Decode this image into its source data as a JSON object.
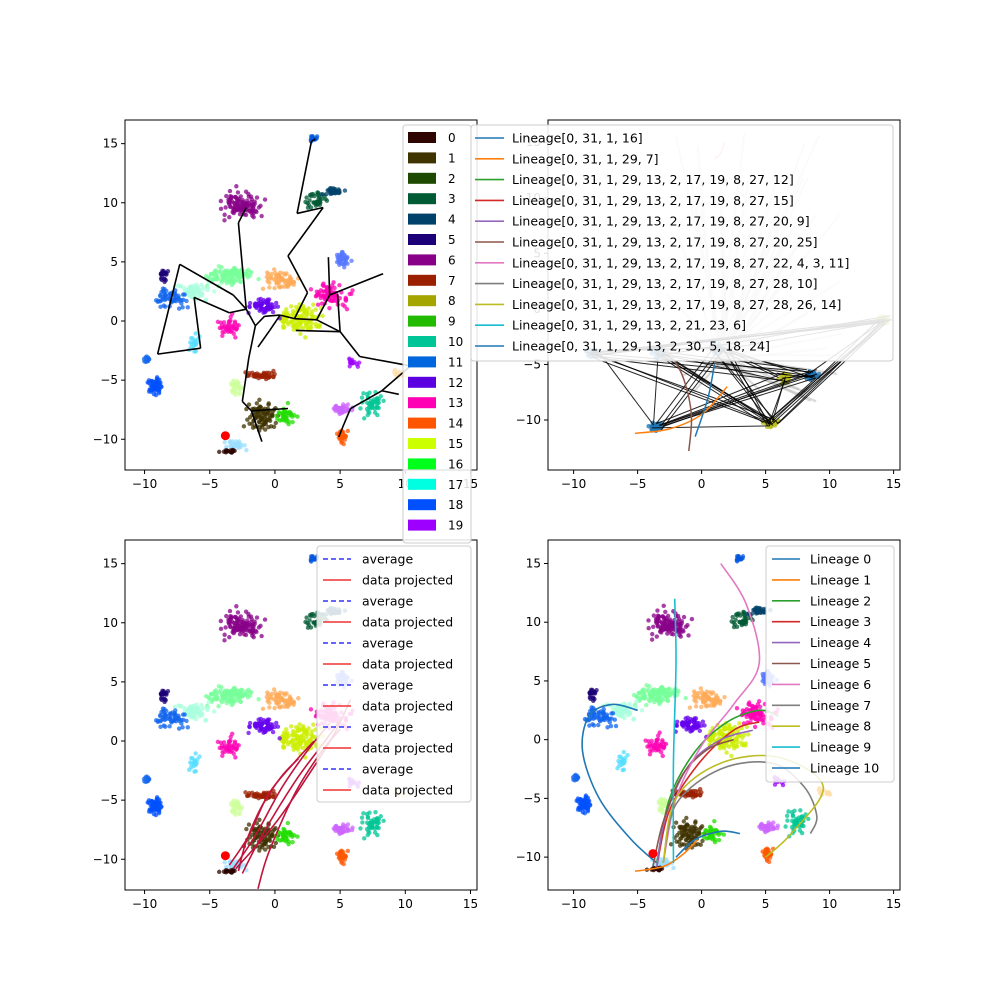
{
  "chart_data": [
    {
      "type": "scatter",
      "panel": "top-left",
      "title": "",
      "xlabel": "",
      "ylabel": "",
      "xlim": [
        -11.5,
        15.5
      ],
      "ylim": [
        -12.6,
        17.0
      ],
      "xticks": [
        -10,
        -5,
        0,
        5,
        10,
        15
      ],
      "yticks": [
        -10,
        -5,
        0,
        5,
        10,
        15
      ],
      "legend": {
        "placement": "right, overflowing the axes",
        "entries": [
          {
            "label": "0",
            "color": "#2e0500"
          },
          {
            "label": "1",
            "color": "#3f3300"
          },
          {
            "label": "2",
            "color": "#1d4a00"
          },
          {
            "label": "3",
            "color": "#005a33"
          },
          {
            "label": "4",
            "color": "#00416a"
          },
          {
            "label": "5",
            "color": "#1c0077"
          },
          {
            "label": "6",
            "color": "#880088"
          },
          {
            "label": "7",
            "color": "#9b2000"
          },
          {
            "label": "8",
            "color": "#a5a500"
          },
          {
            "label": "9",
            "color": "#22bb00"
          },
          {
            "label": "10",
            "color": "#00c596"
          },
          {
            "label": "11",
            "color": "#0066dd"
          },
          {
            "label": "12",
            "color": "#5a00e0"
          },
          {
            "label": "13",
            "color": "#ff00b4"
          },
          {
            "label": "14",
            "color": "#ff5500"
          },
          {
            "label": "15",
            "color": "#ccff00"
          },
          {
            "label": "16",
            "color": "#00ff1a"
          },
          {
            "label": "17",
            "color": "#00ffe0"
          },
          {
            "label": "18",
            "color": "#0050ff"
          },
          {
            "label": "19",
            "color": "#9d00ff"
          }
        ]
      },
      "start_marker": {
        "x": -3.8,
        "y": -9.7,
        "color": "#ff0000"
      },
      "tree_edges": [
        [
          [
            -9.0,
            -2.8
          ],
          [
            -7.3,
            4.8
          ]
        ],
        [
          [
            -7.3,
            4.8
          ],
          [
            -3.2,
            2.2
          ]
        ],
        [
          [
            -3.2,
            2.2
          ],
          [
            -2.2,
            1.0
          ]
        ],
        [
          [
            -9.0,
            -2.8
          ],
          [
            -5.7,
            -2.3
          ]
        ],
        [
          [
            -5.7,
            -2.3
          ],
          [
            -6.2,
            2.0
          ]
        ],
        [
          [
            -6.2,
            2.0
          ],
          [
            -3.5,
            0.7
          ]
        ],
        [
          [
            -3.5,
            0.7
          ],
          [
            -2.2,
            1.0
          ]
        ],
        [
          [
            -2.2,
            1.0
          ],
          [
            -2.8,
            8.3
          ]
        ],
        [
          [
            -2.8,
            8.3
          ],
          [
            -2.2,
            9.6
          ]
        ],
        [
          [
            -2.2,
            1.0
          ],
          [
            -1.5,
            -0.4
          ]
        ],
        [
          [
            -1.5,
            -0.4
          ],
          [
            -2.0,
            -3.1
          ]
        ],
        [
          [
            -2.0,
            -3.1
          ],
          [
            -2.5,
            -6.8
          ]
        ],
        [
          [
            -2.5,
            -6.8
          ],
          [
            -1.8,
            -7.6
          ]
        ],
        [
          [
            -1.8,
            -7.6
          ],
          [
            -1.0,
            -10.2
          ]
        ],
        [
          [
            -1.8,
            -7.6
          ],
          [
            1.0,
            -7.4
          ]
        ],
        [
          [
            -1.5,
            -0.4
          ],
          [
            -0.8,
            0.4
          ]
        ],
        [
          [
            -0.8,
            0.4
          ],
          [
            0.4,
            0.5
          ]
        ],
        [
          [
            0.4,
            0.5
          ],
          [
            1.5,
            0.2
          ]
        ],
        [
          [
            1.5,
            0.2
          ],
          [
            3.2,
            0.1
          ]
        ],
        [
          [
            0.4,
            0.5
          ],
          [
            -0.4,
            -0.8
          ]
        ],
        [
          [
            -0.4,
            -0.8
          ],
          [
            -1.3,
            -2.2
          ]
        ],
        [
          [
            1.5,
            0.2
          ],
          [
            2.5,
            2.4
          ]
        ],
        [
          [
            2.5,
            2.4
          ],
          [
            1.0,
            5.5
          ]
        ],
        [
          [
            1.0,
            5.5
          ],
          [
            3.7,
            9.6
          ]
        ],
        [
          [
            3.7,
            9.6
          ],
          [
            1.7,
            9.1
          ]
        ],
        [
          [
            1.7,
            9.1
          ],
          [
            2.8,
            15.2
          ]
        ],
        [
          [
            2.8,
            15.2
          ],
          [
            3.1,
            15.4
          ]
        ],
        [
          [
            3.2,
            0.1
          ],
          [
            4.2,
            2.2
          ]
        ],
        [
          [
            4.2,
            2.2
          ],
          [
            4.1,
            5.4
          ]
        ],
        [
          [
            4.2,
            2.2
          ],
          [
            8.3,
            4.0
          ]
        ],
        [
          [
            3.2,
            0.1
          ],
          [
            5.0,
            -0.9
          ]
        ],
        [
          [
            5.0,
            -0.9
          ],
          [
            1.6,
            -0.8
          ]
        ],
        [
          [
            5.0,
            -0.9
          ],
          [
            4.8,
            2.3
          ]
        ],
        [
          [
            5.0,
            -0.9
          ],
          [
            6.5,
            -3.0
          ]
        ],
        [
          [
            6.5,
            -3.0
          ],
          [
            10.4,
            -3.8
          ]
        ],
        [
          [
            10.4,
            -3.8
          ],
          [
            8.2,
            -5.9
          ]
        ],
        [
          [
            8.2,
            -5.9
          ],
          [
            5.8,
            -7.4
          ]
        ],
        [
          [
            5.8,
            -7.4
          ],
          [
            5.3,
            -8.7
          ]
        ],
        [
          [
            5.3,
            -8.7
          ],
          [
            4.9,
            -9.8
          ]
        ],
        [
          [
            8.2,
            -5.9
          ],
          [
            9.5,
            -6.2
          ]
        ]
      ]
    },
    {
      "type": "scatter",
      "panel": "top-right",
      "title": "",
      "xlabel": "",
      "ylabel": "",
      "xlim": [
        -12.0,
        15.5
      ],
      "ylim": [
        -14.5,
        17.0
      ],
      "xticks": [
        -10,
        -5,
        0,
        5,
        10,
        15
      ],
      "yticks": [
        -10,
        -5,
        0,
        5,
        10,
        15
      ],
      "legend": {
        "placement": "upper-left, overlapping the axes",
        "entries": [
          {
            "label": "Lineage[0, 31, 1, 16]",
            "color": "#1f77b4"
          },
          {
            "label": "Lineage[0, 31, 1, 29, 7]",
            "color": "#ff7f0e"
          },
          {
            "label": "Lineage[0, 31, 1, 29, 13, 2, 17, 19, 8, 27, 12]",
            "color": "#2ca02c"
          },
          {
            "label": "Lineage[0, 31, 1, 29, 13, 2, 17, 19, 8, 27, 15]",
            "color": "#d62728"
          },
          {
            "label": "Lineage[0, 31, 1, 29, 13, 2, 17, 19, 8, 27, 20, 9]",
            "color": "#9467bd"
          },
          {
            "label": "Lineage[0, 31, 1, 29, 13, 2, 17, 19, 8, 27, 20, 25]",
            "color": "#8c564b"
          },
          {
            "label": "Lineage[0, 31, 1, 29, 13, 2, 17, 19, 8, 27, 22, 4, 3, 11]",
            "color": "#e377c2"
          },
          {
            "label": "Lineage[0, 31, 1, 29, 13, 2, 17, 19, 8, 27, 28, 10]",
            "color": "#7f7f7f"
          },
          {
            "label": "Lineage[0, 31, 1, 29, 13, 2, 17, 19, 8, 27, 28, 26, 14]",
            "color": "#bcbd22"
          },
          {
            "label": "Lineage[0, 31, 1, 29, 13, 2, 21, 23, 6]",
            "color": "#17becf"
          },
          {
            "label": "Lineage[0, 31, 1, 29, 13, 2, 30, 5, 18, 24]",
            "color": "#1f77b4"
          }
        ]
      },
      "clusters": [
        {
          "x": -8.5,
          "y": -4.0,
          "color": "#1f77b4"
        },
        {
          "x": -3.3,
          "y": -4.0,
          "color": "#1f77b4"
        },
        {
          "x": -3.5,
          "y": -10.6,
          "color": "#1f77b4"
        },
        {
          "x": 1.3,
          "y": -3.6,
          "color": "#1f77b4"
        },
        {
          "x": 5.4,
          "y": -10.3,
          "color": "#bcbd22"
        },
        {
          "x": 6.5,
          "y": -6.2,
          "color": "#bcbd22"
        },
        {
          "x": 8.6,
          "y": -6.0,
          "color": "#1f77b4"
        },
        {
          "x": 14.2,
          "y": -1.0,
          "color": "#bcbd22"
        }
      ]
    },
    {
      "type": "line",
      "panel": "bottom-left",
      "title": "",
      "xlabel": "",
      "ylabel": "",
      "xlim": [
        -11.5,
        15.5
      ],
      "ylim": [
        -12.6,
        17.0
      ],
      "xticks": [
        -10,
        -5,
        0,
        5,
        10,
        15
      ],
      "yticks": [
        -10,
        -5,
        0,
        5,
        10,
        15
      ],
      "legend": {
        "placement": "upper-right",
        "entries": [
          {
            "label": "average",
            "style": "dashed",
            "color": "#3333ff"
          },
          {
            "label": "data projected",
            "style": "solid",
            "color": "#ee3333"
          },
          {
            "label": "average",
            "style": "dashed",
            "color": "#3333ff"
          },
          {
            "label": "data projected",
            "style": "solid",
            "color": "#ee3333"
          },
          {
            "label": "average",
            "style": "dashed",
            "color": "#3333ff"
          },
          {
            "label": "data projected",
            "style": "solid",
            "color": "#ee3333"
          },
          {
            "label": "average",
            "style": "dashed",
            "color": "#3333ff"
          },
          {
            "label": "data projected",
            "style": "solid",
            "color": "#ee3333"
          },
          {
            "label": "average",
            "style": "dashed",
            "color": "#3333ff"
          },
          {
            "label": "data projected",
            "style": "solid",
            "color": "#ee3333"
          },
          {
            "label": "average",
            "style": "dashed",
            "color": "#3333ff"
          },
          {
            "label": "data projected",
            "style": "solid",
            "color": "#ee3333"
          }
        ]
      },
      "start_marker": {
        "x": -3.8,
        "y": -9.7,
        "color": "#ff0000"
      },
      "series": [
        {
          "x": [
            -3.0,
            0.0,
            2.5,
            4.5,
            5.8
          ],
          "y": [
            -10.8,
            -7.0,
            -3.0,
            0.5,
            3.5
          ],
          "color": "#c0143c"
        },
        {
          "x": [
            -2.5,
            -1.0,
            1.5,
            3.5,
            5.2
          ],
          "y": [
            -11.2,
            -8.0,
            -3.5,
            -0.5,
            2.0
          ],
          "color": "#c0143c"
        },
        {
          "x": [
            -1.3,
            -0.5,
            1.5,
            3.5,
            5.0
          ],
          "y": [
            -12.5,
            -9.5,
            -4.5,
            -1.0,
            1.0
          ],
          "color": "#c0143c"
        },
        {
          "x": [
            -3.5,
            -2.0,
            -0.5,
            1.5,
            3.0
          ],
          "y": [
            -10.5,
            -8.0,
            -4.5,
            -1.8,
            0.0
          ],
          "color": "#c0143c"
        },
        {
          "x": [
            -3.2,
            -1.5,
            0.5,
            2.5,
            4.2
          ],
          "y": [
            -10.8,
            -8.0,
            -4.0,
            -0.8,
            1.5
          ],
          "color": "#c0143c"
        },
        {
          "x": [
            -2.8,
            -2.2,
            -1.0,
            0.5,
            1.8
          ],
          "y": [
            -11.0,
            -8.5,
            -5.5,
            -3.0,
            -1.5
          ],
          "color": "#c0143c"
        }
      ]
    },
    {
      "type": "line",
      "panel": "bottom-right",
      "title": "",
      "xlabel": "",
      "ylabel": "",
      "xlim": [
        -12.0,
        15.5
      ],
      "ylim": [
        -12.8,
        17.0
      ],
      "xticks": [
        -10,
        -5,
        0,
        5,
        10,
        15
      ],
      "yticks": [
        -10,
        -5,
        0,
        5,
        10,
        15
      ],
      "legend": {
        "placement": "upper-right"
      },
      "start_marker": {
        "x": -3.8,
        "y": -9.7,
        "color": "#ff0000"
      },
      "series": [
        {
          "name": "Lineage 0",
          "color": "#1f77b4",
          "x": [
            -3.5,
            -5.5,
            -8.0,
            -9.3,
            -8.8,
            -7.0,
            -5.0
          ],
          "y": [
            -10.5,
            -8.5,
            -5.0,
            -1.0,
            2.0,
            3.0,
            2.5
          ]
        },
        {
          "name": "Lineage 1",
          "color": "#ff7f0e",
          "x": [
            -5.2,
            -3.0,
            -1.5,
            -0.3
          ],
          "y": [
            -11.2,
            -10.8,
            -9.8,
            -8.5
          ]
        },
        {
          "name": "Lineage 2",
          "color": "#2ca02c",
          "x": [
            -3.5,
            -2.5,
            -0.5,
            2.0,
            4.5,
            6.0
          ],
          "y": [
            -10.5,
            -5.0,
            -1.0,
            1.5,
            2.5,
            2.0
          ]
        },
        {
          "name": "Lineage 3",
          "color": "#d62728",
          "x": [
            -3.5,
            -2.5,
            -0.2,
            2.5,
            4.5
          ],
          "y": [
            -10.8,
            -6.0,
            -2.0,
            0.8,
            1.5
          ]
        },
        {
          "name": "Lineage 4",
          "color": "#9467bd",
          "x": [
            -3.5,
            -2.8,
            -1.0,
            1.5,
            4.0
          ],
          "y": [
            -10.8,
            -6.5,
            -2.2,
            0.0,
            0.8
          ]
        },
        {
          "name": "Lineage 5",
          "color": "#8c564b",
          "x": [
            -3.8,
            -3.0,
            -1.5,
            0.5,
            2.5
          ],
          "y": [
            -10.8,
            -7.0,
            -3.0,
            -0.8,
            0.0
          ]
        },
        {
          "name": "Lineage 6",
          "color": "#e377c2",
          "x": [
            -3.0,
            -2.0,
            0.0,
            2.5,
            4.5,
            3.5,
            1.5
          ],
          "y": [
            -10.5,
            -5.0,
            -0.5,
            3.0,
            6.5,
            11.5,
            15.0
          ]
        },
        {
          "name": "Lineage 7",
          "color": "#7f7f7f",
          "x": [
            -3.0,
            -2.0,
            1.5,
            5.5,
            8.0,
            9.0,
            8.5
          ],
          "y": [
            -10.5,
            -5.5,
            -2.5,
            -2.0,
            -4.0,
            -6.5,
            -8.0
          ]
        },
        {
          "name": "Lineage 8",
          "color": "#bcbd22",
          "x": [
            -3.0,
            -2.0,
            1.5,
            6.0,
            9.5,
            7.0,
            5.0
          ],
          "y": [
            -10.5,
            -5.0,
            -2.0,
            -1.5,
            -4.0,
            -8.0,
            -10.0
          ]
        },
        {
          "name": "Lineage 9",
          "color": "#17becf",
          "x": [
            -2.2,
            -2.2,
            -2.0,
            -2.1
          ],
          "y": [
            -10.5,
            -2.0,
            6.5,
            12.0
          ]
        },
        {
          "name": "Lineage 10",
          "color": "#1f77b4",
          "x": [
            -2.0,
            -0.5,
            1.5,
            3.0
          ],
          "y": [
            -10.0,
            -8.5,
            -7.8,
            -8.0
          ]
        }
      ]
    }
  ]
}
